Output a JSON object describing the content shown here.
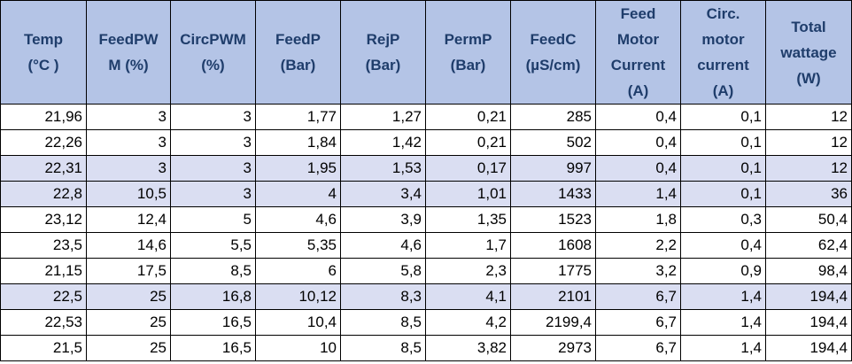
{
  "table": {
    "headers": [
      "Temp\n(°C )",
      "FeedPW\nM  (%)",
      "CircPWM\n(%)",
      "FeedP\n(Bar)",
      "RejP\n(Bar)",
      "PermP\n(Bar)",
      "FeedC\n(µS/cm)",
      "Feed\nMotor\nCurrent\n(A)",
      "Circ.\nmotor\ncurrent\n(A)",
      "Total\nwattage\n(W)"
    ],
    "rows": [
      [
        "21,96",
        "3",
        "3",
        "1,77",
        "1,27",
        "0,21",
        "285",
        "0,4",
        "0,1",
        "12"
      ],
      [
        "22,26",
        "3",
        "3",
        "1,84",
        "1,42",
        "0,21",
        "502",
        "0,4",
        "0,1",
        "12"
      ],
      [
        "22,31",
        "3",
        "3",
        "1,95",
        "1,53",
        "0,17",
        "997",
        "0,4",
        "0,1",
        "12"
      ],
      [
        "22,8",
        "10,5",
        "3",
        "4",
        "3,4",
        "1,01",
        "1433",
        "1,4",
        "0,1",
        "36"
      ],
      [
        "23,12",
        "12,4",
        "5",
        "4,6",
        "3,9",
        "1,35",
        "1523",
        "1,8",
        "0,3",
        "50,4"
      ],
      [
        "23,5",
        "14,6",
        "5,5",
        "5,35",
        "4,6",
        "1,7",
        "1608",
        "2,2",
        "0,4",
        "62,4"
      ],
      [
        "21,15",
        "17,5",
        "8,5",
        "6",
        "5,8",
        "2,3",
        "1775",
        "3,2",
        "0,9",
        "98,4"
      ],
      [
        "22,5",
        "25",
        "16,8",
        "10,12",
        "8,3",
        "4,1",
        "2101",
        "6,7",
        "1,4",
        "194,4"
      ],
      [
        "22,53",
        "25",
        "16,5",
        "10,4",
        "8,5",
        "4,2",
        "2199,4",
        "6,7",
        "1,4",
        "194,4"
      ],
      [
        "21,5",
        "25",
        "16,5",
        "10",
        "8,5",
        "3,82",
        "2973",
        "6,7",
        "1,4",
        "194,4"
      ]
    ]
  }
}
